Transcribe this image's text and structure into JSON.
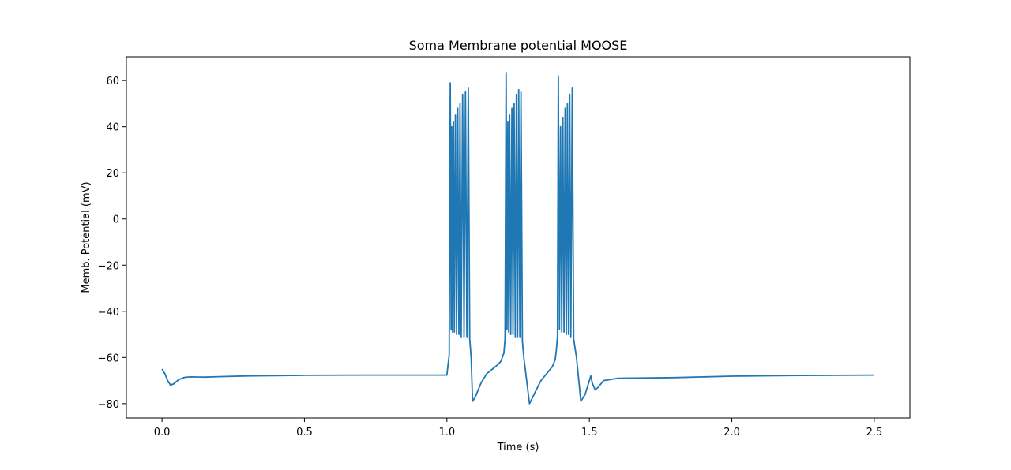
{
  "chart_data": {
    "type": "line",
    "title": "Soma Membrane potential MOOSE",
    "xlabel": "Time (s)",
    "ylabel": "Memb. Potential (mV)",
    "xlim": [
      -0.125,
      2.625
    ],
    "ylim": [
      -86.2,
      70.3
    ],
    "xticks": [
      0.0,
      0.5,
      1.0,
      1.5,
      2.0,
      2.5
    ],
    "xtick_labels": [
      "0.0",
      "0.5",
      "1.0",
      "1.5",
      "2.0",
      "2.5"
    ],
    "yticks": [
      60,
      40,
      20,
      0,
      -20,
      -40,
      -60,
      -80
    ],
    "ytick_labels": [
      "60",
      "40",
      "20",
      "0",
      "−20",
      "−40",
      "−60",
      "−80"
    ],
    "grid": false,
    "line_color": "#1f77b4",
    "series": [
      {
        "name": "",
        "x": [
          0.0,
          0.01,
          0.02,
          0.03,
          0.04,
          0.06,
          0.08,
          0.1,
          0.15,
          0.2,
          0.3,
          0.5,
          0.7,
          0.9,
          1.0,
          1.004,
          1.008,
          1.012,
          1.015,
          1.017,
          1.02,
          1.023,
          1.026,
          1.03,
          1.034,
          1.038,
          1.042,
          1.046,
          1.05,
          1.055,
          1.06,
          1.065,
          1.07,
          1.075,
          1.08,
          1.085,
          1.09,
          1.1,
          1.12,
          1.14,
          1.16,
          1.18,
          1.19,
          1.2,
          1.204,
          1.208,
          1.211,
          1.214,
          1.217,
          1.22,
          1.224,
          1.228,
          1.232,
          1.236,
          1.24,
          1.244,
          1.248,
          1.252,
          1.256,
          1.26,
          1.265,
          1.27,
          1.29,
          1.31,
          1.33,
          1.35,
          1.37,
          1.38,
          1.384,
          1.388,
          1.391,
          1.395,
          1.399,
          1.403,
          1.407,
          1.411,
          1.415,
          1.419,
          1.423,
          1.427,
          1.431,
          1.435,
          1.44,
          1.445,
          1.455,
          1.47,
          1.485,
          1.5,
          1.505,
          1.51,
          1.52,
          1.53,
          1.55,
          1.6,
          1.8,
          2.0,
          2.2,
          2.5
        ],
        "y": [
          -65,
          -67,
          -70,
          -72,
          -71.5,
          -69.5,
          -68.6,
          -68.4,
          -68.5,
          -68.3,
          -68,
          -67.7,
          -67.6,
          -67.6,
          -67.6,
          -63,
          -59,
          59,
          -48,
          40,
          -49,
          42,
          -49,
          45,
          -50,
          48,
          -50,
          50,
          -51,
          54,
          -51,
          55,
          -51,
          57,
          -52,
          -60,
          -79,
          -77,
          -71,
          -67,
          -65,
          -63,
          -61.5,
          -58,
          -52,
          63.5,
          -48,
          42,
          -49,
          45,
          -50,
          48,
          -50,
          50,
          -51,
          54,
          -51,
          56,
          -51,
          55,
          -53,
          -60,
          -80,
          -75,
          -70,
          -67,
          -64,
          -61,
          -57,
          -51,
          62,
          -48,
          40,
          -49,
          44,
          -49,
          48,
          -50,
          50,
          -50,
          54,
          -51,
          57,
          -52,
          -60,
          -79,
          -76,
          -70,
          -68,
          -71,
          -74,
          -73,
          -70,
          -69,
          -68.7,
          -68.1,
          -67.8,
          -67.6
        ]
      }
    ]
  }
}
